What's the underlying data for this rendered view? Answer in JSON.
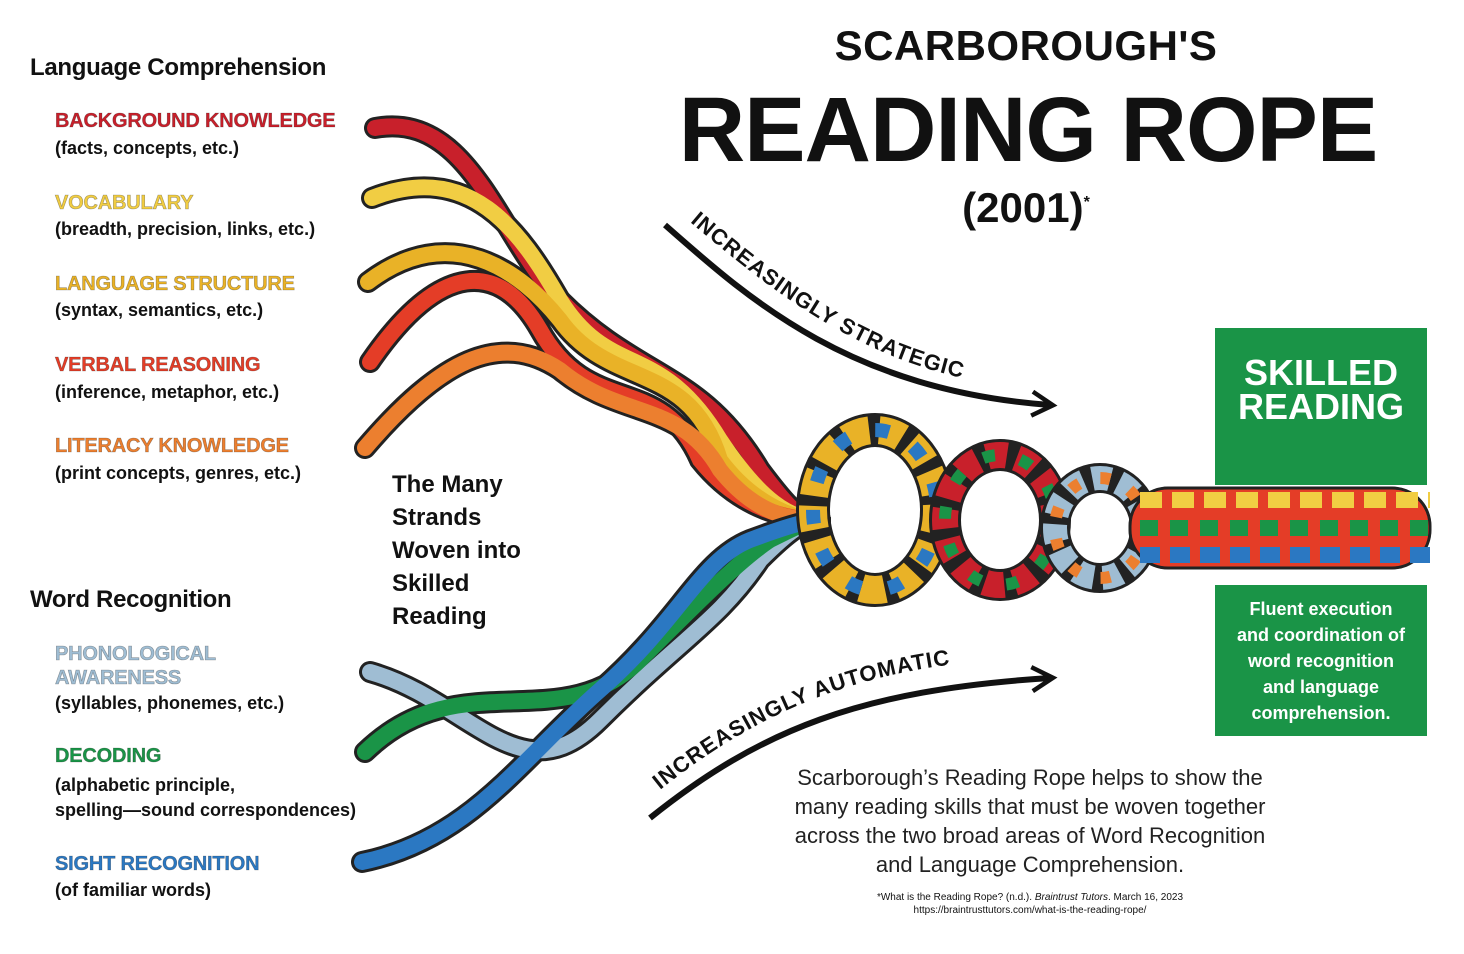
{
  "title": {
    "line1": "SCARBOROUGH'S",
    "line2": "READING ROPE",
    "year": "(2001)",
    "footnote_mark": "*"
  },
  "language_comprehension": {
    "heading": "Language Comprehension",
    "strands": [
      {
        "name": "BACKGROUND KNOWLEDGE",
        "detail": "(facts, concepts, etc.)",
        "color": "#c8202b"
      },
      {
        "name": "VOCABULARY",
        "detail": "(breadth, precision, links, etc.)",
        "color": "#f1cd43"
      },
      {
        "name": "LANGUAGE STRUCTURE",
        "detail": "(syntax, semantics, etc.)",
        "color": "#e9b227"
      },
      {
        "name": "VERBAL REASONING",
        "detail": "(inference, metaphor, etc.)",
        "color": "#e43d27"
      },
      {
        "name": "LITERACY KNOWLEDGE",
        "detail": "(print concepts, genres, etc.)",
        "color": "#ec7f2f"
      }
    ]
  },
  "word_recognition": {
    "heading": "Word Recognition",
    "strands": [
      {
        "name_line1": "PHONOLOGICAL",
        "name_line2": "AWARENESS",
        "detail": "(syllables, phonemes, etc.)",
        "color": "#9fbdd3"
      },
      {
        "name": "DECODING",
        "detail_line1": "(alphabetic principle,",
        "detail_line2": "spelling—sound correspondences)",
        "color": "#1a9447"
      },
      {
        "name": "SIGHT RECOGNITION",
        "detail": "(of familiar words)",
        "color": "#2b78c2"
      }
    ]
  },
  "center_label": [
    "The Many",
    "Strands",
    "Woven into",
    "Skilled",
    "Reading"
  ],
  "arrows": {
    "top": "INCREASINGLY STRATEGIC",
    "bottom": "INCREASINGLY AUTOMATIC"
  },
  "skilled_reading": {
    "heading_line1": "SKILLED",
    "heading_line2": "READING",
    "body": [
      "Fluent execution",
      "and coordination of",
      "word recognition",
      "and language",
      "comprehension."
    ],
    "color": "#1a9447"
  },
  "description": [
    "Scarborough’s Reading Rope helps to show the",
    "many reading skills that must be woven together",
    "across the two broad areas of Word Recognition",
    "and Language Comprehension."
  ],
  "citation": {
    "line1_pre": "*What is the Reading Rope? (n.d.). ",
    "line1_italic": "Braintrust Tutors",
    "line1_post": ". March 16, 2023",
    "line2": "https://braintrusttutors.com/what-is-the-reading-rope/"
  }
}
